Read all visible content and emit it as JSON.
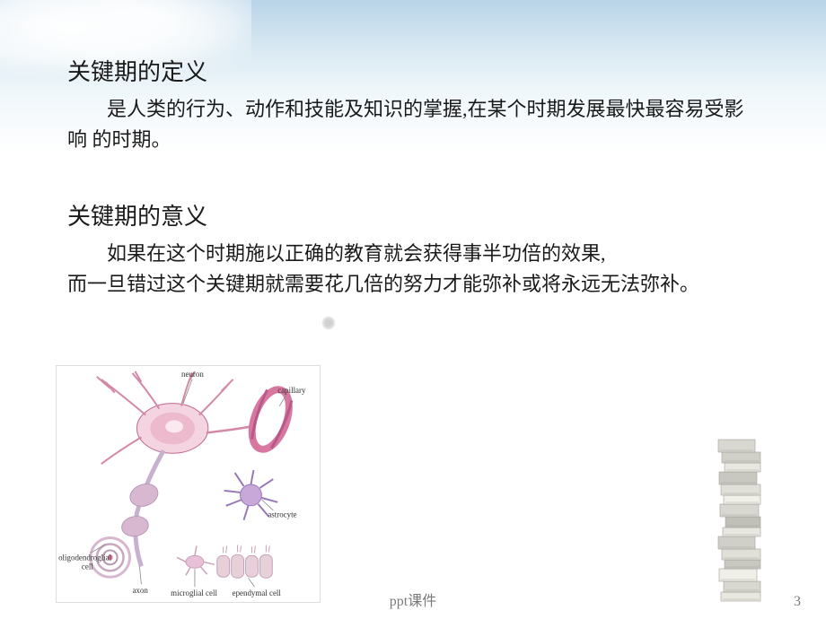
{
  "section1": {
    "title": "关键期的定义",
    "body": "是人类的行为、动作和技能及知识的掌握,在某个时期发展最快最容易受影响 的时期。"
  },
  "section2": {
    "title": "关键期的意义",
    "body_line1": "如果在这个时期施以正确的教育就会获得事半功倍的效果,",
    "body_line2": "而一旦错过这个关键期就需要花几倍的努力才能弥补或将永远无法弥补。"
  },
  "footer": {
    "label": "ppt课件",
    "page_number": "3"
  },
  "neuron_diagram": {
    "labels": {
      "neuron": "neuron",
      "capillary": "capillary",
      "astrocyte": "astrocyte",
      "oligodendroglial": "oligodendroglial",
      "cell": "cell",
      "axon": "axon",
      "microglial": "microglial cell",
      "ependymal": "ependymal cell"
    },
    "colors": {
      "neuron_body": "#e8a8c0",
      "neuron_dark": "#c06890",
      "neuron_light": "#f4d4e0",
      "dendrite": "#d488a8",
      "capillary": "#d878a0",
      "capillary_dark": "#b85888",
      "astrocyte": "#c8a8d8",
      "astrocyte_dark": "#9878b8",
      "oligo": "#d8b8d0",
      "axon": "#c8b0d0",
      "microglial": "#e8c0d8",
      "ependymal": "#e8d0d8",
      "ependymal_dark": "#c8a0b8",
      "label_text": "#333333",
      "label_line": "#888888"
    },
    "label_fontsize": 9
  },
  "books": {
    "colors": [
      "#e8e8e0",
      "#d8d8d0",
      "#f0f0e8",
      "#c8c8c0",
      "#e0e0d8",
      "#d0d0c8",
      "#e8e8e0",
      "#c0c0b8",
      "#d8d8d0",
      "#f0f0e8",
      "#e0e0d8",
      "#c8c8c0",
      "#e8e8e0",
      "#d0d0c8",
      "#d8d8d0"
    ],
    "spine_color": "#a0a098"
  }
}
